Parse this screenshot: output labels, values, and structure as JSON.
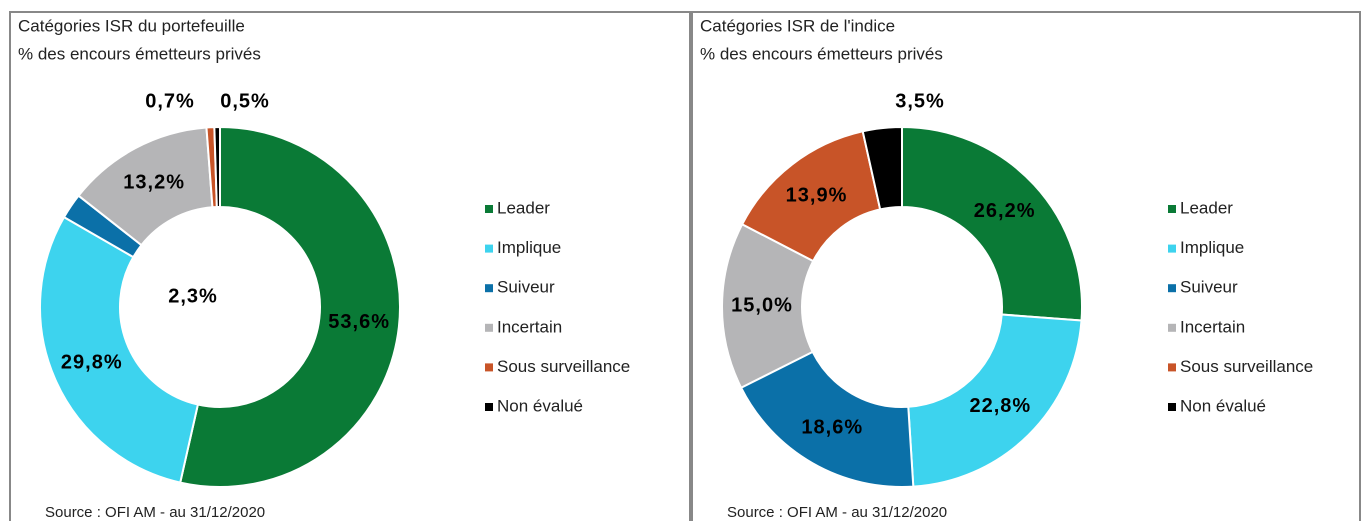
{
  "chart_data": [
    {
      "type": "donut",
      "title": "Catégories ISR du portefeuille",
      "subtitle": "% des encours émetteurs privés",
      "categories": [
        "Leader",
        "Implique",
        "Suiveur",
        "Incertain",
        "Sous surveillance",
        "Non évalué"
      ],
      "values": [
        53.6,
        29.8,
        2.3,
        13.2,
        0.7,
        0.5
      ],
      "value_labels": [
        "53,6%",
        "29,8%",
        "2,3%",
        "13,2%",
        "0,7%",
        "0,5%"
      ],
      "colors": [
        "#0a7a36",
        "#3dd3ee",
        "#0b70a8",
        "#b5b5b7",
        "#c85428",
        "#000000"
      ],
      "source": "Source : OFI AM - au 31/12/2020"
    },
    {
      "type": "donut",
      "title": "Catégories ISR de l'indice",
      "subtitle": "% des encours émetteurs privés",
      "categories": [
        "Leader",
        "Implique",
        "Suiveur",
        "Incertain",
        "Sous surveillance",
        "Non évalué"
      ],
      "values": [
        26.2,
        22.8,
        18.6,
        15.0,
        13.9,
        3.5
      ],
      "value_labels": [
        "26,2%",
        "22,8%",
        "18,6%",
        "15,0%",
        "13,9%",
        "3,5%"
      ],
      "colors": [
        "#0a7a36",
        "#3dd3ee",
        "#0b70a8",
        "#b5b5b7",
        "#c85428",
        "#000000"
      ],
      "source": "Source : OFI AM - au 31/12/2020"
    }
  ]
}
